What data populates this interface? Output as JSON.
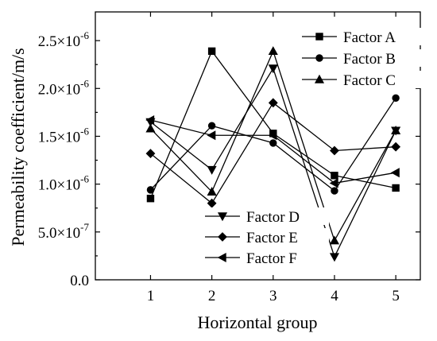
{
  "chart_data": {
    "type": "line",
    "xlabel": "Horizontal group",
    "ylabel": "Permeability coefficient/m/s",
    "x": [
      1,
      2,
      3,
      4,
      5
    ],
    "x_ticks": [
      "1",
      "2",
      "3",
      "4",
      "5"
    ],
    "xlim": [
      0.1,
      5.4
    ],
    "ylim": [
      0,
      2.8e-06
    ],
    "y_ticks": [
      0,
      5e-07,
      1e-06,
      1.5e-06,
      2e-06,
      2.5e-06
    ],
    "y_tick_labels": [
      {
        "mantissa": "0.0",
        "exp": ""
      },
      {
        "mantissa": "5.0×10",
        "exp": "-7"
      },
      {
        "mantissa": "1.0×10",
        "exp": "-6"
      },
      {
        "mantissa": "1.5×10",
        "exp": "-6"
      },
      {
        "mantissa": "2.0×10",
        "exp": "-6"
      },
      {
        "mantissa": "2.5×10",
        "exp": "-6"
      }
    ],
    "series": [
      {
        "name": "Factor A",
        "marker": "square",
        "values": [
          8.5e-07,
          2.39e-06,
          1.53e-06,
          1.09e-06,
          9.6e-07
        ]
      },
      {
        "name": "Factor B",
        "marker": "circle",
        "values": [
          9.4e-07,
          1.61e-06,
          1.43e-06,
          9.3e-07,
          1.9e-06
        ]
      },
      {
        "name": "Factor C",
        "marker": "triangle-up",
        "values": [
          1.58e-06,
          9.2e-07,
          2.39e-06,
          4.1e-07,
          1.56e-06
        ]
      },
      {
        "name": "Factor D",
        "marker": "triangle-down",
        "values": [
          1.65e-06,
          1.15e-06,
          2.21e-06,
          2.4e-07,
          1.56e-06
        ]
      },
      {
        "name": "Factor E",
        "marker": "diamond",
        "values": [
          1.32e-06,
          8e-07,
          1.85e-06,
          1.35e-06,
          1.39e-06
        ]
      },
      {
        "name": "Factor F",
        "marker": "triangle-left",
        "values": [
          1.67e-06,
          1.51e-06,
          1.51e-06,
          1.01e-06,
          1.12e-06
        ]
      }
    ],
    "legend": [
      {
        "position": "top-right",
        "entries": [
          "Factor A",
          "Factor B",
          "Factor C"
        ]
      },
      {
        "position": "bottom-center",
        "entries": [
          "Factor D",
          "Factor E",
          "Factor F"
        ]
      }
    ],
    "grid": false
  }
}
